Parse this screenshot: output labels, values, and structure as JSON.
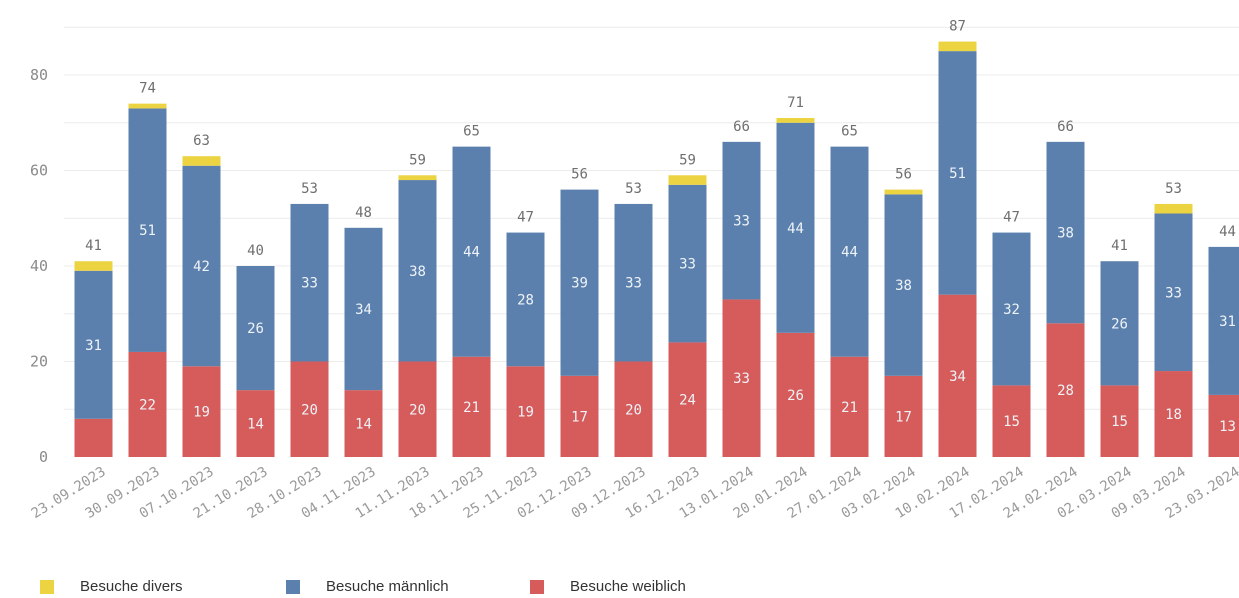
{
  "chart_data": {
    "type": "bar",
    "stacked": true,
    "categories": [
      "23.09.2023",
      "30.09.2023",
      "07.10.2023",
      "21.10.2023",
      "28.10.2023",
      "04.11.2023",
      "11.11.2023",
      "18.11.2023",
      "25.11.2023",
      "02.12.2023",
      "09.12.2023",
      "16.12.2023",
      "13.01.2024",
      "20.01.2024",
      "27.01.2024",
      "03.02.2024",
      "10.02.2024",
      "17.02.2024",
      "24.02.2024",
      "02.03.2024",
      "09.03.2024",
      "23.03.2024"
    ],
    "series": [
      {
        "name": "Besuche weiblich",
        "color": "#d65b5b",
        "values": [
          8,
          22,
          19,
          14,
          20,
          14,
          20,
          21,
          19,
          17,
          20,
          24,
          33,
          26,
          21,
          17,
          34,
          15,
          28,
          15,
          18,
          13
        ],
        "labels_shown": [
          false,
          true,
          true,
          true,
          true,
          true,
          true,
          true,
          true,
          true,
          true,
          true,
          true,
          true,
          true,
          true,
          true,
          true,
          true,
          true,
          true,
          true
        ]
      },
      {
        "name": "Besuche männlich",
        "color": "#5b80ad",
        "values": [
          31,
          51,
          42,
          26,
          33,
          34,
          38,
          44,
          28,
          39,
          33,
          33,
          33,
          44,
          44,
          38,
          51,
          32,
          38,
          26,
          33,
          31
        ],
        "labels_shown": [
          true,
          true,
          true,
          true,
          true,
          true,
          true,
          true,
          true,
          true,
          true,
          true,
          true,
          true,
          true,
          true,
          true,
          true,
          true,
          true,
          true,
          true
        ]
      },
      {
        "name": "Besuche divers",
        "color": "#ecd342",
        "values": [
          2,
          1,
          2,
          0,
          0,
          0,
          1,
          0,
          0,
          0,
          0,
          2,
          0,
          1,
          0,
          1,
          2,
          0,
          0,
          0,
          2,
          0
        ],
        "labels_shown": [
          false,
          false,
          false,
          false,
          false,
          false,
          false,
          false,
          false,
          false,
          false,
          false,
          false,
          false,
          false,
          false,
          false,
          false,
          false,
          false,
          false,
          false
        ]
      }
    ],
    "totals": [
      41,
      74,
      63,
      40,
      53,
      48,
      59,
      65,
      47,
      56,
      53,
      59,
      66,
      71,
      65,
      56,
      87,
      47,
      66,
      41,
      53,
      44
    ],
    "y_ticks": [
      0,
      20,
      40,
      60,
      80
    ],
    "ylim": [
      0,
      90
    ],
    "grid": true,
    "legend_position": "bottom-left",
    "legend": [
      {
        "label": "Besuche divers",
        "color": "#ecd342"
      },
      {
        "label": "Besuche männlich",
        "color": "#5b80ad"
      },
      {
        "label": "Besuche weiblich",
        "color": "#d65b5b"
      }
    ]
  }
}
